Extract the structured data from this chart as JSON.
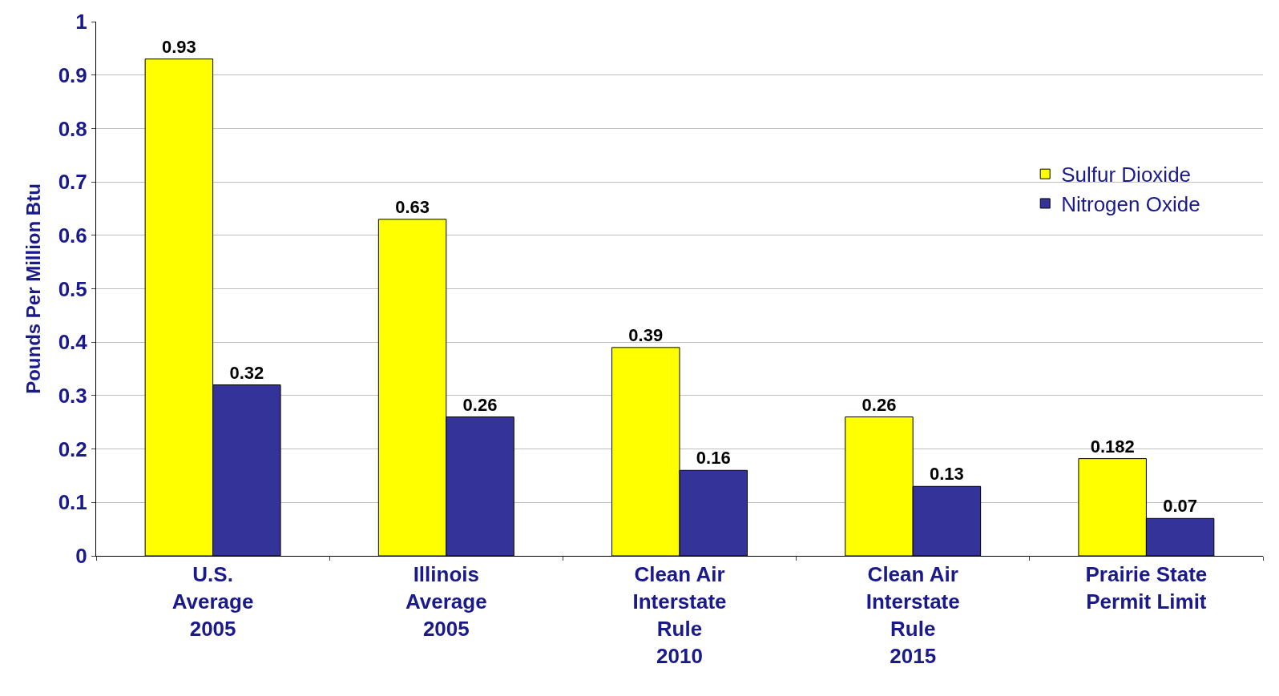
{
  "chart_data": {
    "type": "bar",
    "ylabel": "Pounds Per Million Btu",
    "categories": [
      "U.S.\nAverage\n2005",
      "Illinois\nAverage\n2005",
      "Clean Air\nInterstate\nRule\n2010",
      "Clean Air\nInterstate\nRule\n2015",
      "Prairie State\nPermit Limit"
    ],
    "series": [
      {
        "name": "Sulfur Dioxide",
        "color": "#ffff00",
        "values": [
          0.93,
          0.63,
          0.39,
          0.26,
          0.182
        ]
      },
      {
        "name": "Nitrogen Oxide",
        "color": "#333399",
        "values": [
          0.32,
          0.26,
          0.16,
          0.13,
          0.07
        ]
      }
    ],
    "ylim": [
      0,
      1
    ],
    "yticks": [
      0,
      0.1,
      0.2,
      0.3,
      0.4,
      0.5,
      0.6,
      0.7,
      0.8,
      0.9,
      1
    ],
    "grid": "y",
    "legend": "top right",
    "data_labels": true
  }
}
